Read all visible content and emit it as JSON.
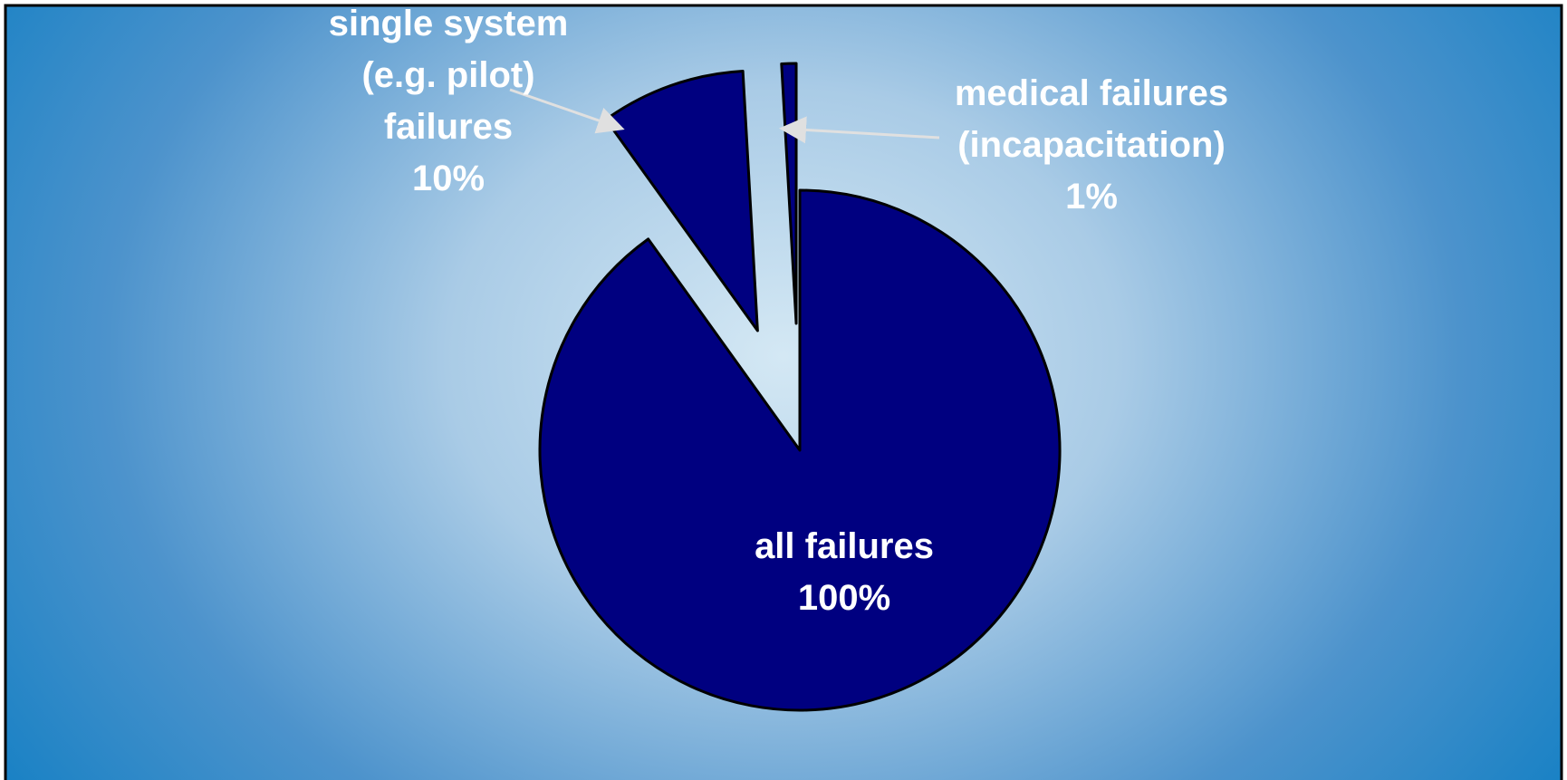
{
  "chart_data": {
    "type": "pie",
    "categories": [
      "all failures",
      "single system (e.g. pilot) failures",
      "medical failures (incapacitation)"
    ],
    "values": [
      100,
      10,
      1
    ],
    "value_labels": [
      "100%",
      "10%",
      "1%"
    ],
    "color": "#000080"
  }
}
